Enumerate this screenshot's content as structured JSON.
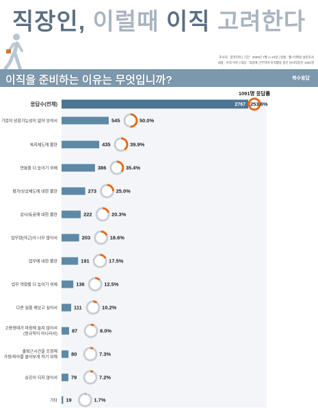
{
  "header": {
    "title_part1": "직장인,",
    "title_part2": "이럴때",
    "title_part3": "이직",
    "title_part4": "고려한다",
    "meta_line1": "조사처 : 잡코리아 | 기간 : 2008년 7월 1~10일 | 방법 : 웹+이메일 설문조사",
    "meta_line2": "내용 : 이직 이유 | 대상 : 직장에 근무하며 이직활동 중인 남녀직장인 1091명",
    "question": "이직을 준비하는 이유는 무엇입니까?",
    "multi_note": "복수응답"
  },
  "colors": {
    "bar": "#5d89a6",
    "total_bar": "#4c7593",
    "ring_track": "#c9ced5",
    "ring_fill": "#e36b1c",
    "banner": "#7c98ad"
  },
  "chart_data": {
    "type": "bar",
    "orientation": "horizontal",
    "respondents_label": "1091명 응답률",
    "categories": [
      "응답수(전체)",
      "기업의 성장가능성이 없어 보여서",
      "복지제도에 불만",
      "연봉을 더 높이기 위해",
      "평가/보상제도에 대한 불만",
      "상사/동료에 대한 불만",
      "업무량(야근)이 너무 많아서",
      "업무에 대한 불만",
      "업무 역량을 더 높이기 위해",
      "다른 일을 해보고 싶어서",
      "고용형태가 마음에 들지 않아서\n(정규직이 아니라서)",
      "출퇴근시간을 조정해\n가정/육아를 돌아보게 하기 위해",
      "승진이 되지 않아서",
      "기타"
    ],
    "values": [
      2767,
      545,
      435,
      386,
      273,
      222,
      203,
      191,
      136,
      111,
      87,
      80,
      79,
      19
    ],
    "value_labels": [
      "2767",
      "545",
      "435",
      "386",
      "273",
      "222",
      "203",
      "191",
      "136",
      "111",
      "87",
      "80",
      "79",
      "19"
    ],
    "percentages": [
      253.6,
      50.0,
      39.9,
      35.4,
      25.0,
      20.3,
      18.6,
      17.5,
      12.5,
      10.2,
      8.0,
      7.3,
      7.2,
      1.7
    ],
    "percent_labels": [
      "253.6%",
      "50.0%",
      "39.9%",
      "35.4%",
      "25.0%",
      "20.3%",
      "18.6%",
      "17.5%",
      "12.5%",
      "10.2%",
      "8.0%",
      "7.3%",
      "7.2%",
      "1.7%"
    ]
  }
}
